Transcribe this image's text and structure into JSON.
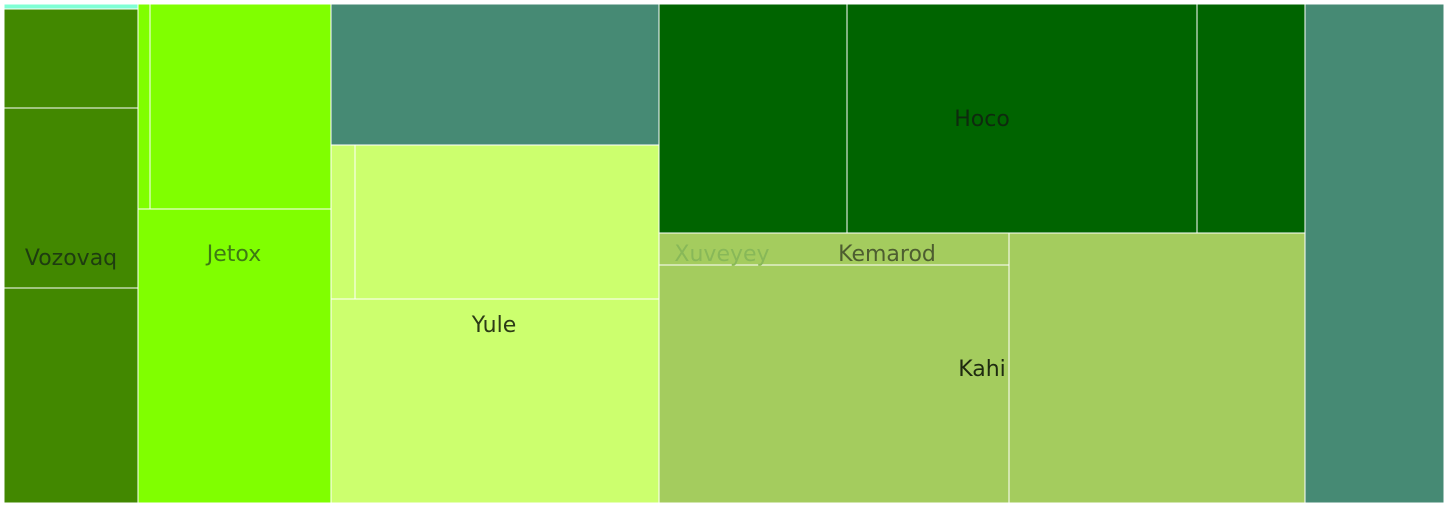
{
  "chart_data": {
    "type": "treemap",
    "colors": {
      "dark_green": "#006400",
      "olive_green": "#428800",
      "lime": "#80ff00",
      "pale_lime": "#ccff6e",
      "khaki_green": "#a4cc5e",
      "teal": "#468a74",
      "aqua": "#7fffd4"
    },
    "labels": {
      "vozovaq": "Vozovaq",
      "jetox": "Jetox",
      "yule": "Yule",
      "hoco": "Hoco",
      "xuveyey": "Xuveyey",
      "kemarod": "Kemarod",
      "kahi": "Kahi"
    },
    "tiles": [
      {
        "id": "vozovaq-sliver",
        "group": "Vozovaq",
        "color": "#7fffd4",
        "value": 0.3
      },
      {
        "id": "vozovaq-a",
        "group": "Vozovaq",
        "color": "#428800",
        "value": 13.2
      },
      {
        "id": "vozovaq-b",
        "group": "Vozovaq",
        "color": "#428800",
        "value": 24.0
      },
      {
        "id": "vozovaq-c",
        "group": "Vozovaq",
        "color": "#428800",
        "value": 28.8
      },
      {
        "id": "jetox-a",
        "group": "Jetox",
        "color": "#80ff00",
        "value": 2.4
      },
      {
        "id": "jetox-b",
        "group": "Jetox",
        "color": "#80ff00",
        "value": 37.2
      },
      {
        "id": "jetox-c",
        "group": "Jetox",
        "color": "#80ff00",
        "value": 58.2
      },
      {
        "id": "yule-teal",
        "group": "Yule",
        "color": "#468a74",
        "value": 46.0
      },
      {
        "id": "yule-a",
        "group": "Yule",
        "color": "#ccff6e",
        "value": 3.6
      },
      {
        "id": "yule-b",
        "group": "Yule",
        "color": "#ccff6e",
        "value": 47.0
      },
      {
        "id": "yule-c",
        "group": "Yule",
        "color": "#ccff6e",
        "value": 67.4
      },
      {
        "id": "hoco-a",
        "group": "Hoco",
        "color": "#006400",
        "value": 42.7
      },
      {
        "id": "hoco-b",
        "group": "Hoco",
        "color": "#006400",
        "value": 80.0
      },
      {
        "id": "hoco-c",
        "group": "Hoco",
        "color": "#006400",
        "value": 24.8
      },
      {
        "id": "kahi-a",
        "group": "Kahi",
        "color": "#a4cc5e",
        "value": 11.2
      },
      {
        "id": "kahi-b",
        "group": "Kahi",
        "color": "#a4cc5e",
        "value": 83.1
      },
      {
        "id": "kahi-c",
        "group": "Kahi",
        "color": "#a4cc5e",
        "value": 79.5
      },
      {
        "id": "teal-right",
        "group": "",
        "color": "#468a74",
        "value": 69.0
      }
    ]
  }
}
